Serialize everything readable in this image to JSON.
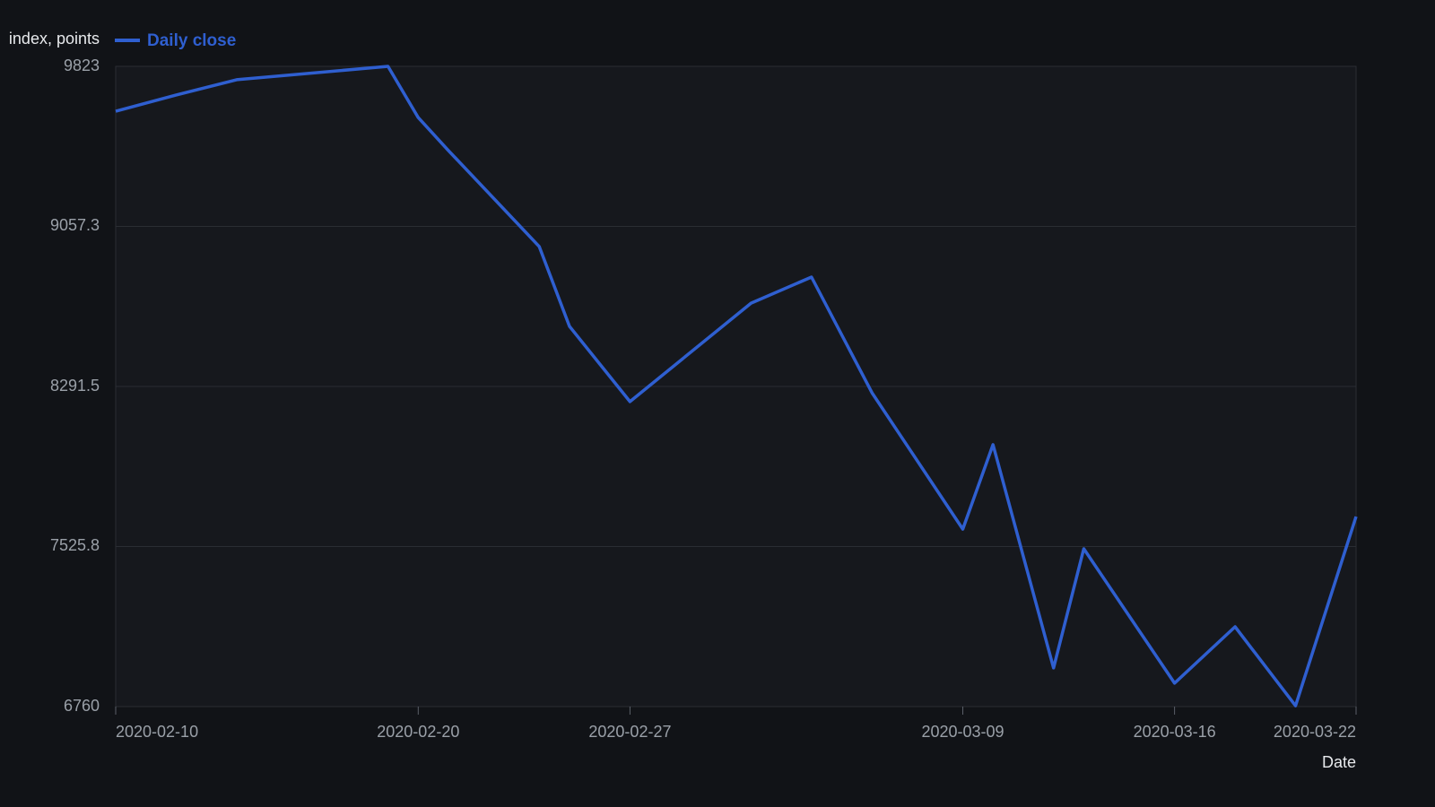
{
  "chart_data": {
    "type": "line",
    "y_label": "index, points",
    "x_label": "Date",
    "x": [
      "2020-02-10",
      "2020-02-12",
      "2020-02-14",
      "2020-02-19",
      "2020-02-20",
      "2020-02-21",
      "2020-02-24",
      "2020-02-25",
      "2020-02-27",
      "2020-03-02",
      "2020-03-04",
      "2020-03-06",
      "2020-03-09",
      "2020-03-10",
      "2020-03-12",
      "2020-03-13",
      "2020-03-16",
      "2020-03-18",
      "2020-03-20",
      "2020-03-22"
    ],
    "series": [
      {
        "name": "Daily close",
        "color": "#2f5fd0",
        "values": [
          9608,
          9686,
          9759,
          9823,
          9578,
          9420,
          8961,
          8579,
          8219,
          8690,
          8815,
          8261,
          7609,
          8013,
          6945,
          7515,
          6872,
          7142,
          6764,
          7669
        ]
      }
    ],
    "xlim": [
      "2020-02-10",
      "2020-03-22"
    ],
    "xticks": [
      "2020-02-10",
      "2020-02-20",
      "2020-02-27",
      "2020-03-09",
      "2020-03-16",
      "2020-03-22"
    ],
    "ylim": [
      6760,
      9823
    ],
    "yticks": [
      6760,
      7525.8,
      8291.5,
      9057.3,
      9823
    ],
    "grid": true,
    "legend": "top"
  }
}
